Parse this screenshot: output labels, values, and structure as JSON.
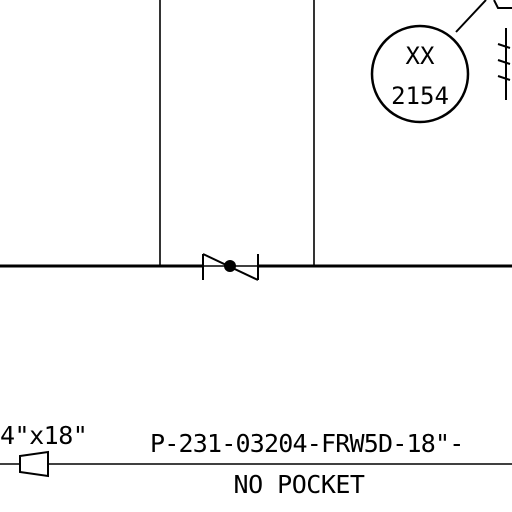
{
  "instrument_bubble": {
    "tag_letters": "XX",
    "tag_number": "2154"
  },
  "reducer_label": "4\"x18\"",
  "line_label": "P-231-03204-FRW5D-18\"-",
  "line_note": "NO POCKET",
  "colors": {
    "line": "#000000",
    "background": "#ffffff"
  }
}
